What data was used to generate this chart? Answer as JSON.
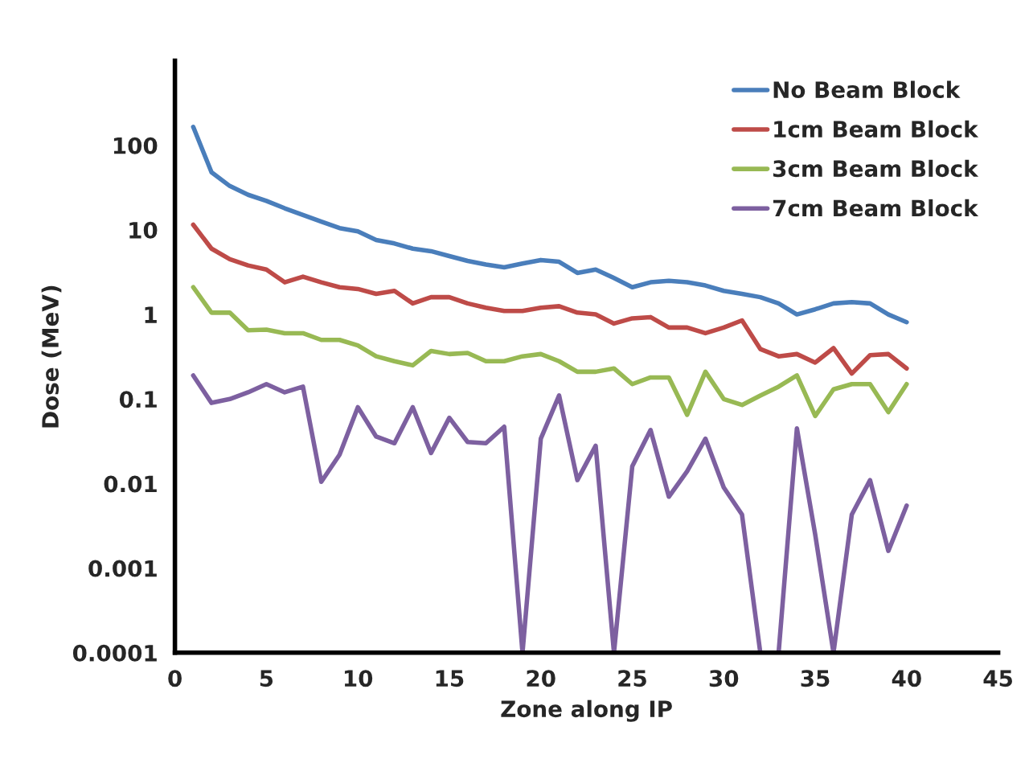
{
  "chart_data": {
    "type": "line",
    "xlabel": "Zone along IP",
    "ylabel": "Dose (MeV)",
    "x": [
      1,
      2,
      3,
      4,
      5,
      6,
      7,
      8,
      9,
      10,
      11,
      12,
      13,
      14,
      15,
      16,
      17,
      18,
      19,
      20,
      21,
      22,
      23,
      24,
      25,
      26,
      27,
      28,
      29,
      30,
      31,
      32,
      33,
      34,
      35,
      36,
      37,
      38,
      39,
      40
    ],
    "series": [
      {
        "name": "No Beam Block",
        "color": "#4a7ebb",
        "values": [
          165,
          48,
          33,
          26,
          22,
          18,
          15,
          12.5,
          10.5,
          9.6,
          7.6,
          6.9,
          6,
          5.6,
          4.9,
          4.3,
          3.9,
          3.6,
          4,
          4.4,
          4.2,
          3.1,
          3.4,
          2.7,
          2.1,
          2.4,
          2.5,
          2.4,
          2.2,
          1.9,
          1.75,
          1.6,
          1.35,
          1.0,
          1.15,
          1.35,
          1.4,
          1.35,
          1.0,
          0.81
        ]
      },
      {
        "name": "1cm Beam Block",
        "color": "#be4b48",
        "values": [
          11.5,
          6,
          4.5,
          3.8,
          3.4,
          2.4,
          2.8,
          2.4,
          2.1,
          2.0,
          1.75,
          1.9,
          1.35,
          1.6,
          1.6,
          1.35,
          1.2,
          1.1,
          1.1,
          1.2,
          1.25,
          1.05,
          1.0,
          0.78,
          0.9,
          0.93,
          0.7,
          0.7,
          0.6,
          0.7,
          0.85,
          0.39,
          0.32,
          0.34,
          0.27,
          0.4,
          0.2,
          0.33,
          0.34,
          0.23
        ]
      },
      {
        "name": "3cm Beam Block",
        "color": "#98b954",
        "values": [
          2.1,
          1.05,
          1.05,
          0.65,
          0.66,
          0.6,
          0.6,
          0.5,
          0.5,
          0.43,
          0.32,
          0.28,
          0.25,
          0.37,
          0.34,
          0.35,
          0.28,
          0.28,
          0.32,
          0.34,
          0.28,
          0.21,
          0.21,
          0.23,
          0.15,
          0.18,
          0.18,
          0.065,
          0.21,
          0.1,
          0.085,
          0.11,
          0.14,
          0.19,
          0.063,
          0.13,
          0.15,
          0.15,
          0.07,
          0.15
        ]
      },
      {
        "name": "7cm Beam Block",
        "color": "#7d60a0",
        "values": [
          0.19,
          0.09,
          0.1,
          0.12,
          0.15,
          0.12,
          0.14,
          0.0105,
          0.022,
          0.08,
          0.036,
          0.03,
          0.08,
          0.023,
          0.06,
          0.031,
          0.03,
          0.047,
          0.0001,
          0.034,
          0.11,
          0.011,
          0.028,
          0.0001,
          0.016,
          0.043,
          0.007,
          0.014,
          0.034,
          0.009,
          0.0043,
          0.0001,
          0.0001,
          0.045,
          0.0025,
          0.0001,
          0.0043,
          0.011,
          0.0016,
          0.0055
        ]
      }
    ],
    "log": "y",
    "xlim": [
      0,
      45
    ],
    "xticks": [
      0,
      5,
      10,
      15,
      20,
      25,
      30,
      35,
      40,
      45
    ],
    "ylim": [
      0.0001,
      1000
    ],
    "yticks": [
      0.0001,
      0.001,
      0.01,
      0.1,
      1,
      10,
      100
    ],
    "grid": false,
    "legend": "top right",
    "line_style": "solid",
    "marker": "none"
  }
}
